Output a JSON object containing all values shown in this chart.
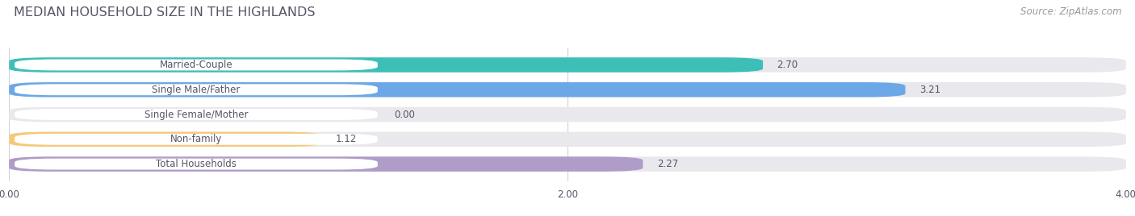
{
  "title": "MEDIAN HOUSEHOLD SIZE IN THE HIGHLANDS",
  "source": "Source: ZipAtlas.com",
  "categories": [
    "Married-Couple",
    "Single Male/Father",
    "Single Female/Mother",
    "Non-family",
    "Total Households"
  ],
  "values": [
    2.7,
    3.21,
    0.0,
    1.12,
    2.27
  ],
  "bar_colors": [
    "#3dbfb8",
    "#6ca8e8",
    "#f89bb5",
    "#f5c97a",
    "#b09cc8"
  ],
  "xlim": [
    0,
    4.0
  ],
  "xticks": [
    0.0,
    2.0,
    4.0
  ],
  "title_fontsize": 11.5,
  "source_fontsize": 8.5,
  "value_fontsize": 8.5,
  "label_fontsize": 8.5,
  "background_color": "#ffffff",
  "bar_bg_color": "#e8e8ed",
  "label_box_color": "#ffffff",
  "grid_color": "#d0d0d8",
  "text_color": "#555566",
  "title_color": "#555566"
}
